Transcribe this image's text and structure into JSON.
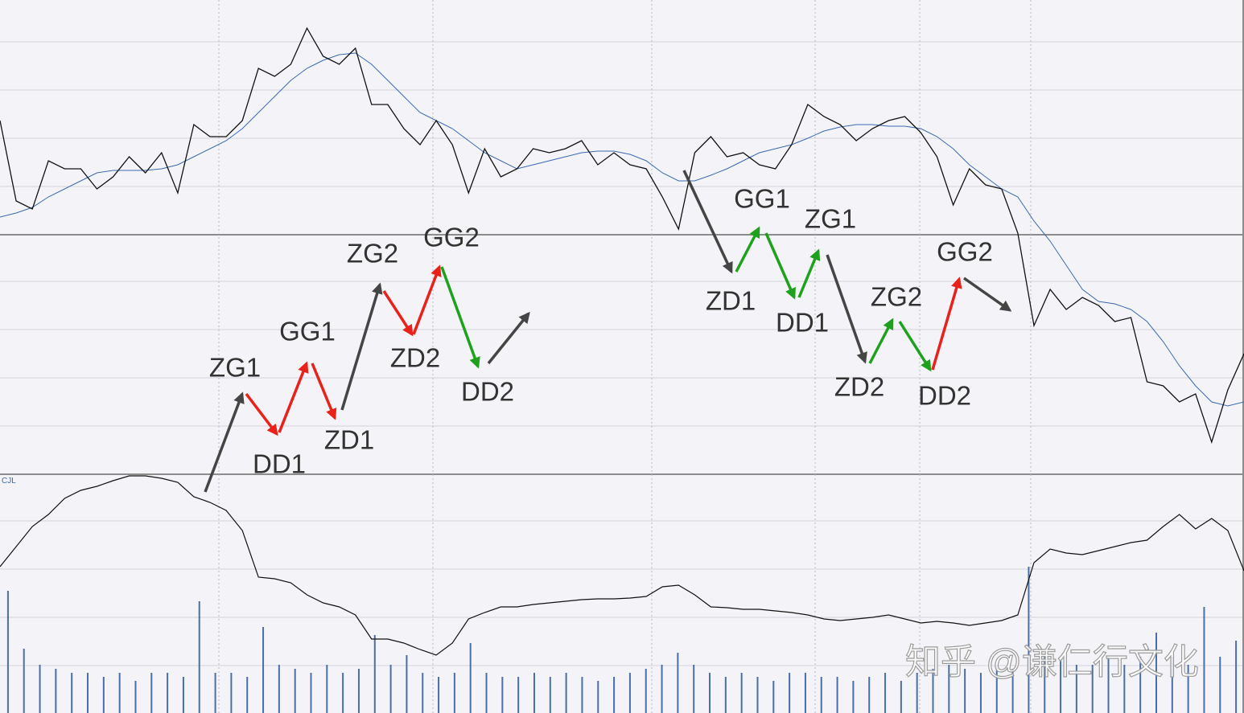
{
  "chart_data": [
    {
      "type": "line",
      "series": [
        {
          "color": "#111111",
          "values": [
            44,
            34,
            33,
            39,
            38,
            38,
            35.5,
            37,
            39.5,
            37.5,
            40,
            35,
            43.5,
            42,
            42,
            44,
            50.5,
            49.5,
            51,
            55.5,
            52,
            51,
            53,
            46,
            46,
            43,
            41,
            44,
            41,
            35,
            40.5,
            37,
            38,
            40.5,
            40,
            40.5,
            41.5,
            38.5,
            40,
            38.5,
            38,
            34.5,
            30.5,
            40,
            42,
            39.5,
            40,
            38.5,
            38,
            41,
            46,
            44.5,
            43.5,
            41.5,
            43,
            44,
            44.5,
            42.5,
            39.5,
            33.5,
            38,
            36,
            35.5,
            30,
            18.5,
            23,
            20.5,
            22,
            21,
            19,
            19.5,
            11.5,
            11,
            9,
            10,
            4,
            10.5,
            15
          ]
        },
        {
          "color": "#3c68b0",
          "values": [
            32,
            32.5,
            33.2,
            34.5,
            35.5,
            36.5,
            37.5,
            37.8,
            37.8,
            37.8,
            38,
            38.5,
            39.5,
            40.5,
            41.5,
            43,
            45,
            47,
            49,
            50.5,
            51.5,
            52.2,
            52.4,
            51,
            49,
            47,
            45,
            44,
            43,
            41.5,
            40,
            39,
            38,
            38.5,
            39,
            39.5,
            40,
            40.2,
            40.2,
            39.8,
            39,
            37.5,
            36.5,
            36.5,
            37.2,
            38,
            39,
            40,
            40.5,
            41,
            41.8,
            42.7,
            43.2,
            43.5,
            43.5,
            43.3,
            43.3,
            43,
            42,
            40.5,
            38.5,
            37,
            35.5,
            34.5,
            31.5,
            29,
            26,
            23,
            21.5,
            21.2,
            20.5,
            19,
            16.5,
            13.5,
            11,
            9,
            8.5,
            9
          ]
        }
      ],
      "ylim": [
        0,
        59
      ],
      "annotations": [
        "ZG1",
        "DD1",
        "GG1",
        "ZD1",
        "ZG2",
        "ZD2",
        "GG2",
        "DD2",
        "ZD1",
        "GG1",
        "DD1",
        "ZG1",
        "ZD2",
        "ZG2",
        "DD2",
        "GG2"
      ]
    },
    {
      "type": "bar",
      "title": "CJL",
      "color": "#4a6fa5",
      "values": [
        15.2,
        8,
        6,
        5.5,
        5,
        5,
        4.5,
        5,
        4,
        5,
        5,
        4.5,
        13.9,
        5,
        5,
        4.5,
        10.7,
        6,
        5.5,
        5,
        6,
        5,
        5.5,
        9.7,
        6,
        7.2,
        5,
        4.5,
        5,
        8.7,
        5,
        4.5,
        4.5,
        5,
        4.5,
        5,
        4.5,
        4,
        4.5,
        5,
        5.5,
        6,
        7.5,
        6,
        5,
        4.5,
        5,
        4.5,
        4,
        5,
        5,
        4.5,
        4.5,
        4,
        4.5,
        5,
        4,
        5,
        5.5,
        6,
        5.5,
        5,
        6,
        5.5,
        18.2,
        7,
        6.5,
        6,
        6,
        7,
        6,
        7,
        10,
        7,
        6,
        13.2,
        7,
        9
      ],
      "line": {
        "color": "#111111",
        "values": [
          18.2,
          20.7,
          23.2,
          24.7,
          26.7,
          27.7,
          28.2,
          28.9,
          29.5,
          29.5,
          29.2,
          28.7,
          26.9,
          26.2,
          25.2,
          22.7,
          16.9,
          16.7,
          16.2,
          14.7,
          13.7,
          13.2,
          12.2,
          9.2,
          9.2,
          8.7,
          7.9,
          7.2,
          8.7,
          11.7,
          12.5,
          13.2,
          13.2,
          13.5,
          13.7,
          13.9,
          14.1,
          14.2,
          14.2,
          14.3,
          14.5,
          15.7,
          15.9,
          14.7,
          13.2,
          13.1,
          12.9,
          12.9,
          12.7,
          12.5,
          12.2,
          11.7,
          11.5,
          11.7,
          11.9,
          12.2,
          11.7,
          11.2,
          11.4,
          11.2,
          10.9,
          11.2,
          11.5,
          12.2,
          18.7,
          20.4,
          19.9,
          19.7,
          20.2,
          20.7,
          21.2,
          21.5,
          23.2,
          24.7,
          22.9,
          24.2,
          22.7,
          17.7
        ]
      },
      "ylim": [
        0,
        29.7
      ]
    }
  ],
  "watermark": "知乎 @谦仁行文化"
}
